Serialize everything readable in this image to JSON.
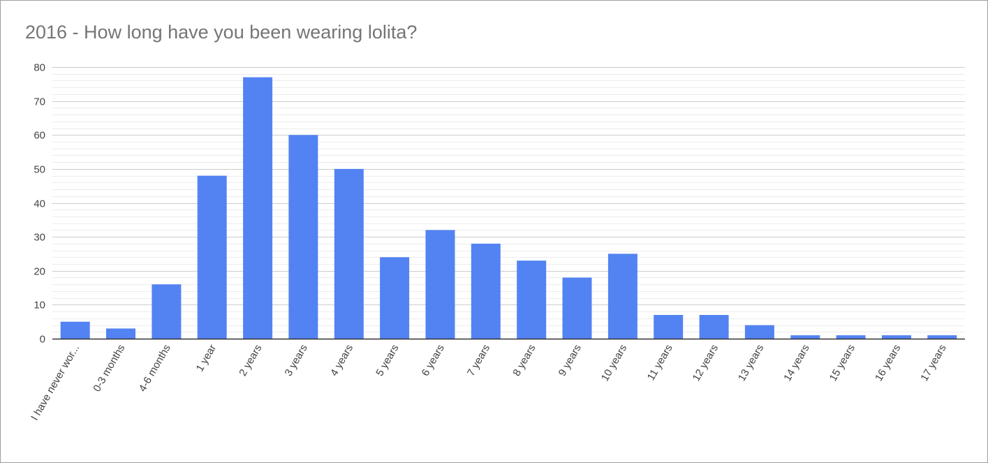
{
  "chart_data": {
    "type": "bar",
    "title": "2016 - How long have you been wearing lolita?",
    "xlabel": "",
    "ylabel": "",
    "ylim": [
      0,
      80
    ],
    "yticks": [
      0,
      10,
      20,
      30,
      40,
      50,
      60,
      70,
      80
    ],
    "grid": true,
    "legend": "none",
    "bar_color": "#5383f2",
    "categories": [
      "I have never wor...",
      "0-3 months",
      "4-6 months",
      "1 year",
      "2 years",
      "3 years",
      "4 years",
      "5 years",
      "6 years",
      "7 years",
      "8 years",
      "9 years",
      "10 years",
      "11 years",
      "12 years",
      "13 years",
      "14 years",
      "15 years",
      "16 years",
      "17 years"
    ],
    "values": [
      5,
      3,
      16,
      48,
      77,
      60,
      50,
      24,
      32,
      28,
      23,
      18,
      25,
      7,
      7,
      4,
      1,
      1,
      1,
      1
    ]
  }
}
